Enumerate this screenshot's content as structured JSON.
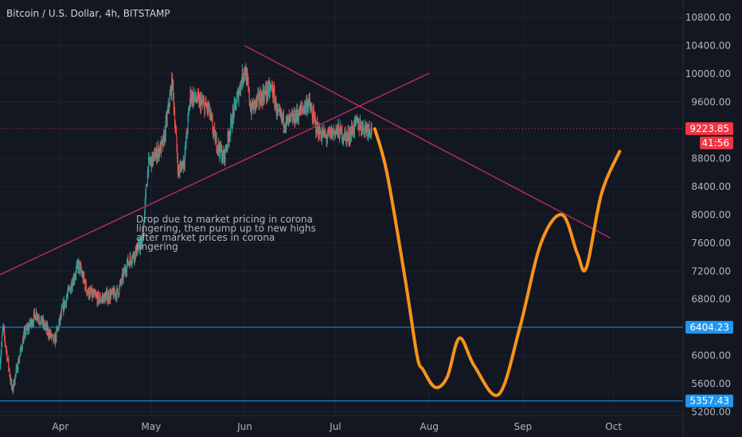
{
  "header": {
    "title": "Bitcoin / U.S. Dollar, 4h, BITSTAMP"
  },
  "chart_data": {
    "type": "candlestick",
    "title": "Bitcoin / U.S. Dollar, 4h, BITSTAMP",
    "symbol": "Bitcoin / U.S. Dollar",
    "interval": "4h",
    "exchange": "BITSTAMP",
    "ylim": [
      5150,
      11050
    ],
    "y_ticks": [
      "10800.00",
      "10400.00",
      "10000.00",
      "9600.00",
      "8800.00",
      "8400.00",
      "8000.00",
      "7600.00",
      "7200.00",
      "6800.00",
      "6000.00",
      "5600.00",
      "5200.00"
    ],
    "x_ticks": [
      {
        "label": "Apr",
        "date": "2020-04-01"
      },
      {
        "label": "May",
        "date": "2020-05-01"
      },
      {
        "label": "Jun",
        "date": "2020-06-01"
      },
      {
        "label": "Jul",
        "date": "2020-07-01"
      },
      {
        "label": "Aug",
        "date": "2020-08-01"
      },
      {
        "label": "Sep",
        "date": "2020-09-01"
      },
      {
        "label": "Oct",
        "date": "2020-10-01"
      }
    ],
    "x_range": [
      "2020-03-12",
      "2020-10-24"
    ],
    "price_anchors": [
      {
        "date": "2020-03-12",
        "price": 5900
      },
      {
        "date": "2020-03-13",
        "price": 6400
      },
      {
        "date": "2020-03-16",
        "price": 5500
      },
      {
        "date": "2020-03-20",
        "price": 6300
      },
      {
        "date": "2020-03-24",
        "price": 6600
      },
      {
        "date": "2020-03-30",
        "price": 6200
      },
      {
        "date": "2020-04-02",
        "price": 6700
      },
      {
        "date": "2020-04-07",
        "price": 7300
      },
      {
        "date": "2020-04-10",
        "price": 6900
      },
      {
        "date": "2020-04-14",
        "price": 6800
      },
      {
        "date": "2020-04-20",
        "price": 6900
      },
      {
        "date": "2020-04-23",
        "price": 7300
      },
      {
        "date": "2020-04-28",
        "price": 7600
      },
      {
        "date": "2020-04-30",
        "price": 8700
      },
      {
        "date": "2020-05-05",
        "price": 9000
      },
      {
        "date": "2020-05-08",
        "price": 9900
      },
      {
        "date": "2020-05-10",
        "price": 8600
      },
      {
        "date": "2020-05-12",
        "price": 8800
      },
      {
        "date": "2020-05-14",
        "price": 9700
      },
      {
        "date": "2020-05-17",
        "price": 9600
      },
      {
        "date": "2020-05-20",
        "price": 9500
      },
      {
        "date": "2020-05-22",
        "price": 9100
      },
      {
        "date": "2020-05-25",
        "price": 8800
      },
      {
        "date": "2020-05-28",
        "price": 9400
      },
      {
        "date": "2020-06-01",
        "price": 10100
      },
      {
        "date": "2020-06-03",
        "price": 9500
      },
      {
        "date": "2020-06-07",
        "price": 9700
      },
      {
        "date": "2020-06-10",
        "price": 9800
      },
      {
        "date": "2020-06-12",
        "price": 9400
      },
      {
        "date": "2020-06-15",
        "price": 9300
      },
      {
        "date": "2020-06-18",
        "price": 9400
      },
      {
        "date": "2020-06-22",
        "price": 9600
      },
      {
        "date": "2020-06-25",
        "price": 9200
      },
      {
        "date": "2020-06-28",
        "price": 9100
      },
      {
        "date": "2020-07-01",
        "price": 9200
      },
      {
        "date": "2020-07-05",
        "price": 9100
      },
      {
        "date": "2020-07-08",
        "price": 9300
      },
      {
        "date": "2020-07-10",
        "price": 9250
      },
      {
        "date": "2020-07-13",
        "price": 9220
      }
    ],
    "last_price": {
      "value": "9223.85",
      "countdown": "41:56",
      "color": "#f23645"
    },
    "horizontal_lines": [
      {
        "price": "6404.23",
        "color": "#2196f3"
      },
      {
        "price": "5357.43",
        "color": "#2196f3"
      }
    ],
    "trendlines": [
      {
        "name": "rising-support",
        "color": "#b02d5c",
        "points": [
          {
            "date": "2020-03-12",
            "price": 7150
          },
          {
            "date": "2020-08-01",
            "price": 10010
          }
        ]
      },
      {
        "name": "falling-resistance",
        "color": "#b02d5c",
        "points": [
          {
            "date": "2020-06-01",
            "price": 10400
          },
          {
            "date": "2020-09-30",
            "price": 7670
          }
        ]
      }
    ],
    "projection": {
      "color": "#f7931a",
      "points": [
        {
          "date": "2020-07-14",
          "price": 9220
        },
        {
          "date": "2020-07-18",
          "price": 8600
        },
        {
          "date": "2020-07-24",
          "price": 7100
        },
        {
          "date": "2020-07-28",
          "price": 6000
        },
        {
          "date": "2020-07-30",
          "price": 5800
        },
        {
          "date": "2020-08-03",
          "price": 5550
        },
        {
          "date": "2020-08-07",
          "price": 5700
        },
        {
          "date": "2020-08-11",
          "price": 6250
        },
        {
          "date": "2020-08-16",
          "price": 5850
        },
        {
          "date": "2020-08-24",
          "price": 5450
        },
        {
          "date": "2020-08-31",
          "price": 6400
        },
        {
          "date": "2020-09-07",
          "price": 7600
        },
        {
          "date": "2020-09-14",
          "price": 8000
        },
        {
          "date": "2020-09-19",
          "price": 7450
        },
        {
          "date": "2020-09-22",
          "price": 7250
        },
        {
          "date": "2020-09-27",
          "price": 8300
        },
        {
          "date": "2020-10-03",
          "price": 8900
        }
      ]
    },
    "annotation": {
      "lines": [
        "Drop due to market pricing in corona",
        "lingering, then pump up to new highs",
        "after market prices in corona",
        "lingering"
      ]
    },
    "colors": {
      "background": "#131722",
      "grid": "#1e222d",
      "up": "#26a69a",
      "down": "#ef5350"
    }
  }
}
